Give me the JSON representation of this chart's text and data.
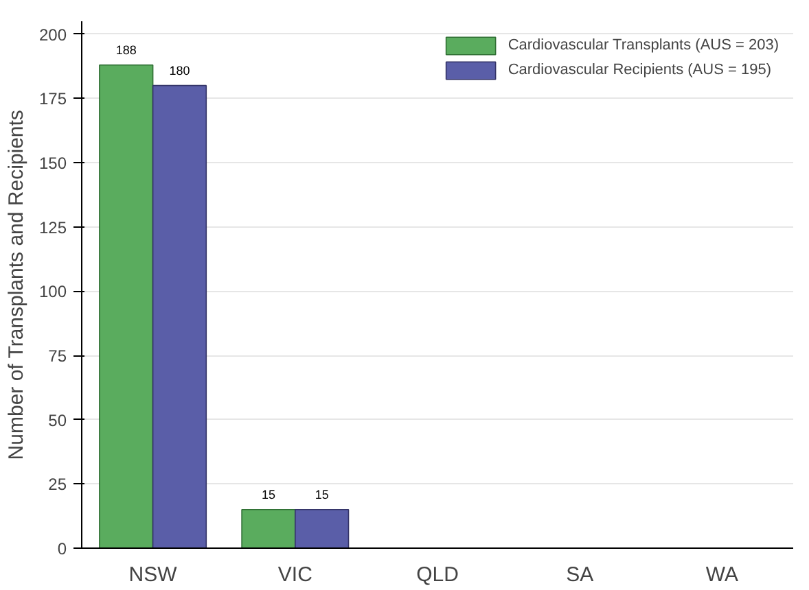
{
  "chart_data": {
    "type": "bar",
    "ylabel": "Number of Transplants and Recipients",
    "categories": [
      "NSW",
      "VIC",
      "QLD",
      "SA",
      "WA"
    ],
    "series": [
      {
        "name": "Cardiovascular Transplants (AUS = 203)",
        "color": "#5aac5e",
        "values": [
          188,
          15,
          null,
          null,
          null
        ]
      },
      {
        "name": "Cardiovascular Recipients (AUS = 195)",
        "color": "#5a5ea8",
        "values": [
          180,
          15,
          null,
          null,
          null
        ]
      }
    ],
    "ylim": [
      0,
      205
    ],
    "yticks": [
      0,
      25,
      50,
      75,
      100,
      125,
      150,
      175,
      200
    ],
    "grid": "y",
    "legend": "top right",
    "data_labels": true
  }
}
